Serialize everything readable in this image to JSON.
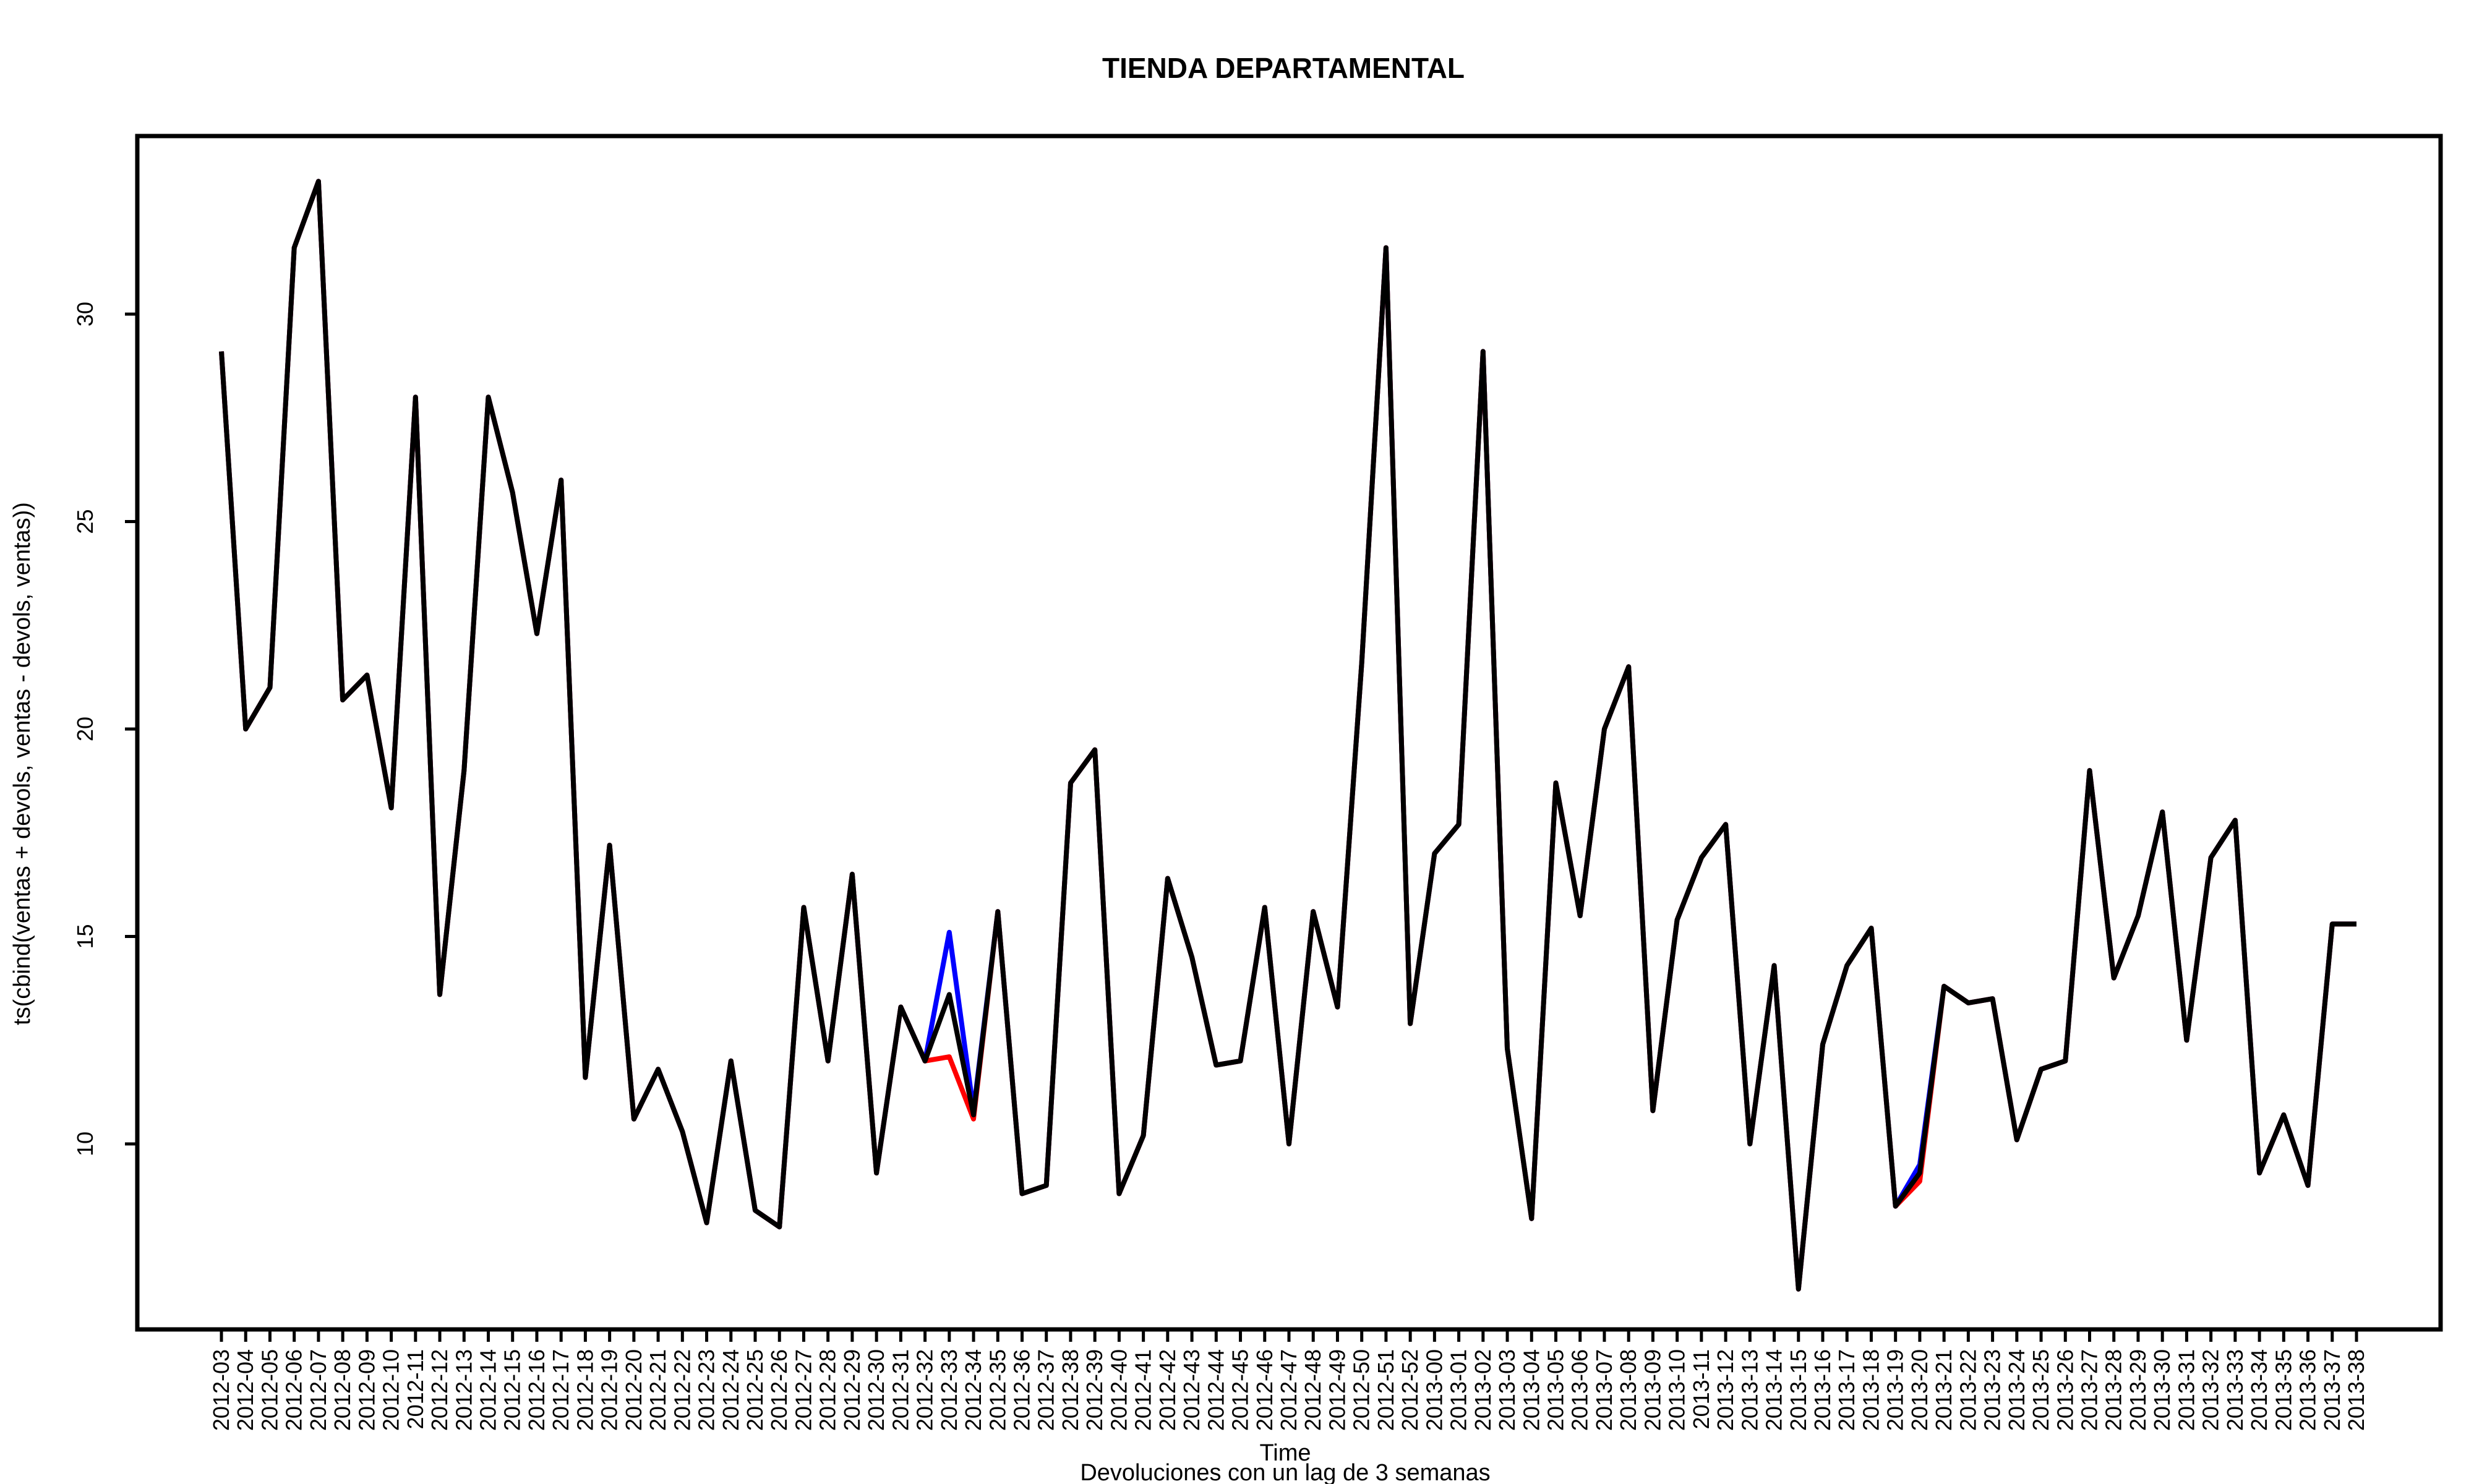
{
  "chart_data": {
    "type": "line",
    "title": "TIENDA DEPARTAMENTAL",
    "xlabel": "Time",
    "ylabel": "ts(cbind(ventas + devols, ventas - devols, ventas))",
    "subtitle": "Devoluciones con un lag de 3 semanas",
    "ylim": [
      5.5,
      34.3
    ],
    "y_ticks": [
      10,
      15,
      20,
      25,
      30
    ],
    "grid": false,
    "categories": [
      "2012-03",
      "2012-04",
      "2012-05",
      "2012-06",
      "2012-07",
      "2012-08",
      "2012-09",
      "2012-10",
      "2012-11",
      "2012-12",
      "2012-13",
      "2012-14",
      "2012-15",
      "2012-16",
      "2012-17",
      "2012-18",
      "2012-19",
      "2012-20",
      "2012-21",
      "2012-22",
      "2012-23",
      "2012-24",
      "2012-25",
      "2012-26",
      "2012-27",
      "2012-28",
      "2012-29",
      "2012-30",
      "2012-31",
      "2012-32",
      "2012-33",
      "2012-34",
      "2012-35",
      "2012-36",
      "2012-37",
      "2012-38",
      "2012-39",
      "2012-40",
      "2012-41",
      "2012-42",
      "2012-43",
      "2012-44",
      "2012-45",
      "2012-46",
      "2012-47",
      "2012-48",
      "2012-49",
      "2012-50",
      "2012-51",
      "2012-52",
      "2013-00",
      "2013-01",
      "2013-02",
      "2013-03",
      "2013-04",
      "2013-05",
      "2013-06",
      "2013-07",
      "2013-08",
      "2013-09",
      "2013-10",
      "2013-11",
      "2013-12",
      "2013-13",
      "2013-14",
      "2013-15",
      "2013-16",
      "2013-17",
      "2013-18",
      "2013-19",
      "2013-20",
      "2013-21",
      "2013-22",
      "2013-23",
      "2013-24",
      "2013-25",
      "2013-26",
      "2013-27",
      "2013-28",
      "2013-29",
      "2013-30",
      "2013-31",
      "2013-32",
      "2013-33",
      "2013-34",
      "2013-35",
      "2013-36",
      "2013-37",
      "2013-38"
    ],
    "series": [
      {
        "color": "#0000ff",
        "values": [
          29.1,
          20.0,
          21.0,
          31.6,
          33.2,
          20.7,
          21.3,
          18.1,
          28.0,
          13.6,
          19.0,
          28.0,
          25.7,
          22.3,
          26.0,
          11.6,
          17.2,
          10.6,
          11.8,
          10.3,
          8.1,
          12.0,
          8.4,
          8.0,
          15.7,
          12.0,
          16.5,
          9.3,
          13.3,
          12.0,
          15.1,
          10.8,
          15.6,
          8.8,
          9.0,
          18.7,
          19.5,
          8.8,
          10.2,
          16.4,
          14.5,
          11.9,
          12.0,
          15.7,
          10.0,
          15.6,
          13.3,
          21.6,
          31.6,
          12.9,
          17.0,
          17.7,
          29.1,
          12.3,
          8.2,
          18.7,
          15.5,
          20.0,
          21.5,
          10.8,
          15.4,
          16.9,
          17.7,
          10.0,
          14.3,
          6.5,
          12.4,
          14.3,
          15.2,
          8.5,
          9.5,
          13.8,
          13.4,
          13.5,
          10.1,
          11.8,
          12.0,
          19.0,
          14.0,
          15.5,
          18.0,
          12.5,
          16.9,
          17.8,
          9.3,
          10.7,
          9.0,
          15.3,
          15.3
        ]
      },
      {
        "color": "#ff0000",
        "values": [
          29.1,
          20.0,
          21.0,
          31.6,
          33.2,
          20.7,
          21.3,
          18.1,
          28.0,
          13.6,
          19.0,
          28.0,
          25.7,
          22.3,
          26.0,
          11.6,
          17.2,
          10.6,
          11.8,
          10.3,
          8.1,
          12.0,
          8.4,
          8.0,
          15.7,
          12.0,
          16.5,
          9.3,
          13.3,
          12.0,
          12.1,
          10.6,
          15.6,
          8.8,
          9.0,
          18.7,
          19.5,
          8.8,
          10.2,
          16.4,
          14.5,
          11.9,
          12.0,
          15.7,
          10.0,
          15.6,
          13.3,
          21.6,
          31.6,
          12.9,
          17.0,
          17.7,
          29.1,
          12.3,
          8.2,
          18.7,
          15.5,
          20.0,
          21.5,
          10.8,
          15.4,
          16.9,
          17.7,
          10.0,
          14.3,
          6.5,
          12.4,
          14.3,
          15.2,
          8.5,
          9.1,
          13.8,
          13.4,
          13.5,
          10.1,
          11.8,
          12.0,
          19.0,
          14.0,
          15.5,
          18.0,
          12.5,
          16.9,
          17.8,
          9.3,
          10.7,
          9.0,
          15.3,
          15.3
        ]
      },
      {
        "color": "#000000",
        "values": [
          29.1,
          20.0,
          21.0,
          31.6,
          33.2,
          20.7,
          21.3,
          18.1,
          28.0,
          13.6,
          19.0,
          28.0,
          25.7,
          22.3,
          26.0,
          11.6,
          17.2,
          10.6,
          11.8,
          10.3,
          8.1,
          12.0,
          8.4,
          8.0,
          15.7,
          12.0,
          16.5,
          9.3,
          13.3,
          12.0,
          13.6,
          10.7,
          15.6,
          8.8,
          9.0,
          18.7,
          19.5,
          8.8,
          10.2,
          16.4,
          14.5,
          11.9,
          12.0,
          15.7,
          10.0,
          15.6,
          13.3,
          21.6,
          31.6,
          12.9,
          17.0,
          17.7,
          29.1,
          12.3,
          8.2,
          18.7,
          15.5,
          20.0,
          21.5,
          10.8,
          15.4,
          16.9,
          17.7,
          10.0,
          14.3,
          6.5,
          12.4,
          14.3,
          15.2,
          8.5,
          9.3,
          13.8,
          13.4,
          13.5,
          10.1,
          11.8,
          12.0,
          19.0,
          14.0,
          15.5,
          18.0,
          12.5,
          16.9,
          17.8,
          9.3,
          10.7,
          9.0,
          15.3,
          15.3
        ]
      }
    ]
  }
}
